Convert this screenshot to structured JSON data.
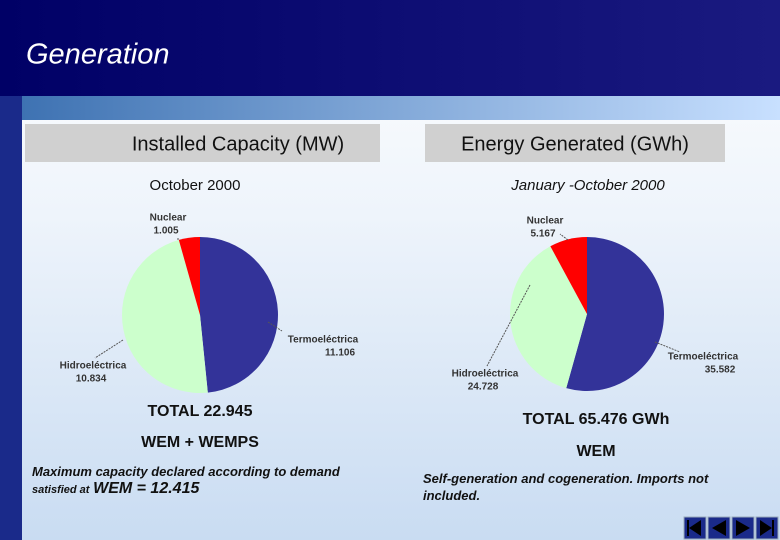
{
  "title": "Generation",
  "chart_data": [
    {
      "type": "pie",
      "title": "Installed Capacity (MW)",
      "subtitle": "October 2000",
      "categories": [
        "Termoeléctrica",
        "Hidroeléctrica",
        "Nuclear"
      ],
      "values": [
        11106,
        10834,
        1005
      ],
      "value_labels": [
        "11.106",
        "10.834",
        "1.005"
      ],
      "colors": [
        "#333399",
        "#ccffcc",
        "#ff0000"
      ],
      "total": "TOTAL 22.945",
      "market": "WEM + WEMPS",
      "note": [
        "Maximum capacity declared according to demand",
        "satisfied  at",
        "WEM  = 12.415"
      ]
    },
    {
      "type": "pie",
      "title": "Energy Generated (GWh)",
      "subtitle": "January -October 2000",
      "categories": [
        "Termoeléctrica",
        "Hidroeléctrica",
        "Nuclear"
      ],
      "values": [
        35582,
        24728,
        5167
      ],
      "value_labels": [
        "35.582",
        "24.728",
        "5.167"
      ],
      "colors": [
        "#333399",
        "#ccffcc",
        "#ff0000"
      ],
      "total": "TOTAL 65.476 GWh",
      "market": "WEM",
      "note": [
        "Self-generation and cogeneration. Imports not included."
      ]
    }
  ]
}
